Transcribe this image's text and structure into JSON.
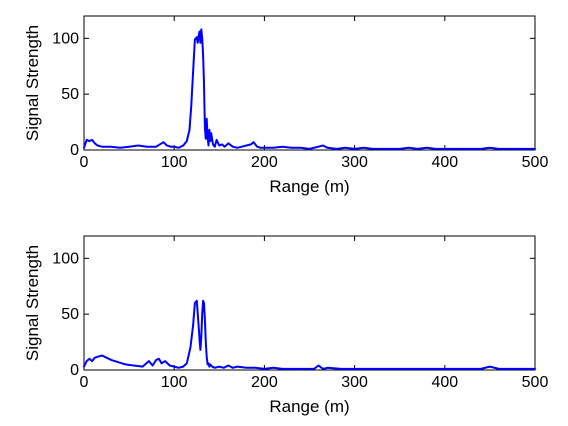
{
  "chart_data": [
    {
      "type": "line",
      "title": "",
      "xlabel": "Range (m)",
      "ylabel": "Signal Strength",
      "xlim": [
        0,
        500
      ],
      "ylim": [
        0,
        120
      ],
      "xticks": [
        0,
        100,
        200,
        300,
        400,
        500
      ],
      "yticks": [
        0,
        50,
        100
      ],
      "grid": false,
      "color": "#0000ff",
      "series": [
        {
          "x": [
            0,
            3,
            6,
            9,
            12,
            15,
            20,
            30,
            40,
            50,
            60,
            70,
            80,
            88,
            92,
            96,
            100,
            105,
            110,
            114,
            117,
            119,
            121,
            123,
            125,
            126,
            127,
            128,
            129,
            130,
            131,
            132,
            133,
            134,
            135,
            136,
            137,
            138,
            139,
            140,
            141,
            143,
            145,
            147,
            150,
            153,
            156,
            160,
            165,
            170,
            175,
            180,
            185,
            188,
            192,
            196,
            200,
            210,
            220,
            230,
            240,
            250,
            260,
            265,
            270,
            280,
            290,
            300,
            310,
            320,
            330,
            340,
            350,
            360,
            370,
            380,
            390,
            400,
            410,
            420,
            430,
            440,
            450,
            460,
            470,
            480,
            490,
            500
          ],
          "y": [
            2,
            9,
            8,
            9,
            6,
            4,
            3,
            3,
            2,
            3,
            4,
            3,
            3,
            7,
            4,
            3,
            3,
            2,
            4,
            8,
            18,
            40,
            70,
            99,
            101,
            96,
            102,
            106,
            96,
            108,
            100,
            85,
            60,
            20,
            10,
            28,
            12,
            4,
            18,
            8,
            15,
            5,
            3,
            9,
            4,
            5,
            3,
            6,
            3,
            2,
            3,
            4,
            5,
            7,
            3,
            2,
            2,
            2,
            3,
            2,
            2,
            1,
            3,
            4,
            2,
            1,
            2,
            1,
            2,
            1,
            1,
            1,
            1,
            2,
            1,
            2,
            1,
            1,
            1,
            1,
            1,
            1,
            2,
            1,
            1,
            1,
            1,
            1
          ]
        }
      ]
    },
    {
      "type": "line",
      "title": "",
      "xlabel": "Range (m)",
      "ylabel": "Signal Strength",
      "xlim": [
        0,
        500
      ],
      "ylim": [
        0,
        120
      ],
      "xticks": [
        0,
        100,
        200,
        300,
        400,
        500
      ],
      "yticks": [
        0,
        50,
        100
      ],
      "grid": false,
      "color": "#0000ff",
      "series": [
        {
          "x": [
            0,
            3,
            6,
            9,
            12,
            16,
            20,
            25,
            30,
            38,
            46,
            55,
            65,
            72,
            76,
            80,
            83,
            86,
            90,
            95,
            100,
            105,
            110,
            114,
            118,
            121,
            123,
            125,
            127,
            128,
            129,
            130,
            131,
            132,
            133,
            134,
            135,
            136,
            137,
            138,
            139,
            140,
            142,
            145,
            150,
            155,
            160,
            165,
            170,
            180,
            190,
            200,
            210,
            220,
            240,
            255,
            260,
            265,
            270,
            285,
            300,
            320,
            340,
            360,
            380,
            400,
            420,
            440,
            450,
            460,
            470,
            480,
            490,
            500
          ],
          "y": [
            3,
            8,
            10,
            8,
            11,
            12,
            13,
            11,
            9,
            7,
            5,
            4,
            3,
            8,
            4,
            9,
            10,
            6,
            8,
            4,
            3,
            2,
            3,
            6,
            20,
            40,
            60,
            62,
            40,
            28,
            18,
            30,
            50,
            62,
            60,
            45,
            25,
            12,
            5,
            6,
            3,
            5,
            3,
            2,
            3,
            2,
            4,
            2,
            3,
            2,
            2,
            1,
            2,
            1,
            1,
            1,
            4,
            1,
            2,
            1,
            1,
            1,
            1,
            1,
            1,
            1,
            1,
            1,
            3,
            1,
            1,
            1,
            1,
            1
          ]
        }
      ]
    }
  ]
}
